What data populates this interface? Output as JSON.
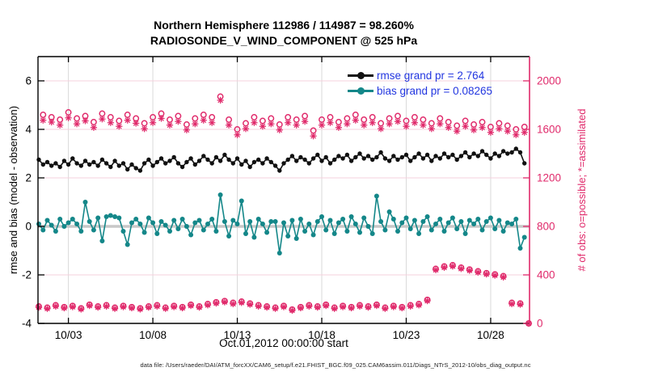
{
  "title": {
    "line1": "Northern Hemisphere 112986 / 114987 = 98.260%",
    "line2": "RADIOSONDE_V_WIND_COMPONENT @ 525 hPa"
  },
  "footer": {
    "data_file_label": "data file: /Users/raeder/DAI/ATM_forcXX/CAM6_setup/f.e21.FHIST_BGC.f09_025.CAM6assim.011/Diags_NTrS_2012-10/obs_diag_output.nc"
  },
  "legend": {
    "text_color": "#2236e0",
    "items": [
      {
        "name": "rmse",
        "label": "rmse grand pr = 2.764",
        "color": "#111111"
      },
      {
        "name": "bias",
        "label": "bias grand pr = 0.08265",
        "color": "#148789"
      }
    ]
  },
  "colors": {
    "rmse_line": "#111111",
    "bias_line": "#148789",
    "obs_pink": "#e02a6b",
    "grid_gray": "#d9d9d9",
    "grid_pink": "#f6d0dd",
    "zero_band": "#c8c8c8",
    "axis_black": "#000000"
  },
  "chart_data": {
    "type": "line",
    "title": "Northern Hemisphere 112986 / 114987 = 98.260%",
    "subtitle": "RADIOSONDE_V_WIND_COMPONENT @ 525 hPa",
    "xlabel": "Oct.01,2012 00:00:00 start",
    "ylabel_left": "rmse and bias (model - observation)",
    "ylabel_right": "# of obs: o=possible; *=assimilated",
    "x_unit": "day of October 2012, 6-hourly bins",
    "x_start_day": 1.25,
    "x_step_day": 0.25,
    "xlim": [
      1.2,
      30.3
    ],
    "ylim_left": [
      -4,
      7
    ],
    "ylim_right": [
      0,
      2200
    ],
    "x_ticks": [
      3,
      8,
      13,
      18,
      23,
      28
    ],
    "x_tick_labels": [
      "10/03",
      "10/08",
      "10/13",
      "10/18",
      "10/23",
      "10/28"
    ],
    "y_ticks_left": [
      -4,
      -2,
      0,
      2,
      4,
      6
    ],
    "y_ticks_right": [
      0,
      400,
      800,
      1200,
      1600,
      2000
    ],
    "grand_pr": {
      "rmse": 2.764,
      "bias": 0.08265
    },
    "series": [
      {
        "name": "rmse",
        "axis": "left",
        "color": "#111111",
        "marker": "dot",
        "line": true,
        "values": [
          2.75,
          2.55,
          2.65,
          2.5,
          2.6,
          2.45,
          2.7,
          2.55,
          2.8,
          2.6,
          2.5,
          2.7,
          2.55,
          2.65,
          2.5,
          2.75,
          2.6,
          2.45,
          2.7,
          2.5,
          2.6,
          2.35,
          2.55,
          2.4,
          2.3,
          2.6,
          2.75,
          2.5,
          2.65,
          2.8,
          2.6,
          2.7,
          2.85,
          2.6,
          2.45,
          2.65,
          2.8,
          2.55,
          2.7,
          2.9,
          2.75,
          2.6,
          2.85,
          2.7,
          2.95,
          2.75,
          2.6,
          2.8,
          2.55,
          2.7,
          2.45,
          2.65,
          2.75,
          2.6,
          2.8,
          2.65,
          2.5,
          2.3,
          2.6,
          2.75,
          2.9,
          2.7,
          2.85,
          2.75,
          2.6,
          2.8,
          2.95,
          2.7,
          2.85,
          2.6,
          2.75,
          2.9,
          2.8,
          2.95,
          2.7,
          2.85,
          3.0,
          2.8,
          2.9,
          2.75,
          2.85,
          3.05,
          2.8,
          2.7,
          2.9,
          2.75,
          2.85,
          2.95,
          2.7,
          2.85,
          3.0,
          2.8,
          2.95,
          2.7,
          2.9,
          2.8,
          3.0,
          2.85,
          2.95,
          2.75,
          2.9,
          3.05,
          2.85,
          3.0,
          2.9,
          3.1,
          2.95,
          2.8,
          3.0,
          2.9,
          3.1,
          3.0,
          3.05,
          3.2,
          3.05,
          2.6,
          null
        ]
      },
      {
        "name": "bias",
        "axis": "left",
        "color": "#148789",
        "marker": "dot",
        "line": true,
        "values": [
          0.1,
          -0.15,
          0.25,
          0.05,
          -0.2,
          0.3,
          0.0,
          0.15,
          0.3,
          0.1,
          -0.2,
          1.0,
          0.2,
          -0.15,
          0.35,
          -0.6,
          0.4,
          0.45,
          0.4,
          0.35,
          -0.2,
          -0.75,
          0.15,
          0.3,
          0.1,
          -0.25,
          0.35,
          0.15,
          -0.3,
          0.2,
          0.05,
          -0.2,
          0.25,
          -0.1,
          0.3,
          0.0,
          -0.35,
          0.15,
          0.25,
          -0.15,
          0.1,
          0.3,
          -0.2,
          1.3,
          0.2,
          -0.4,
          0.25,
          0.1,
          1.05,
          -0.3,
          0.2,
          -0.45,
          0.3,
          0.1,
          -0.25,
          0.2,
          0.2,
          -1.1,
          0.15,
          -0.4,
          0.25,
          -0.5,
          0.3,
          -0.2,
          0.1,
          -0.35,
          0.2,
          0.4,
          -0.15,
          0.25,
          -0.3,
          0.15,
          0.3,
          -0.2,
          0.4,
          0.1,
          -0.25,
          0.35,
          0.0,
          -0.3,
          1.25,
          0.2,
          -0.15,
          0.6,
          0.3,
          -0.2,
          0.15,
          0.35,
          -0.1,
          0.25,
          -0.3,
          0.2,
          0.4,
          -0.15,
          0.1,
          0.3,
          -0.2,
          0.15,
          0.35,
          -0.1,
          0.2,
          -0.3,
          0.25,
          0.1,
          0.3,
          -0.15,
          0.2,
          0.35,
          -0.1,
          0.25,
          -0.2,
          0.15,
          0.1,
          0.3,
          -0.9,
          -0.45,
          null
        ]
      },
      {
        "name": "obs_possible",
        "axis": "right",
        "color": "#e02a6b",
        "marker": "o",
        "line": false,
        "values": [
          140,
          1720,
          130,
          1700,
          150,
          1680,
          135,
          1740,
          145,
          1690,
          125,
          1710,
          155,
          1660,
          140,
          1730,
          150,
          1700,
          130,
          1670,
          145,
          1720,
          135,
          1690,
          125,
          1650,
          140,
          1700,
          150,
          1730,
          130,
          1680,
          145,
          1710,
          135,
          1640,
          155,
          1690,
          140,
          1720,
          160,
          1700,
          175,
          1870,
          185,
          1680,
          170,
          1600,
          180,
          1650,
          165,
          1700,
          150,
          1670,
          140,
          1690,
          130,
          1640,
          145,
          1700,
          115,
          1680,
          135,
          1710,
          150,
          1590,
          140,
          1680,
          155,
          1700,
          130,
          1660,
          145,
          1690,
          135,
          1720,
          150,
          1680,
          140,
          1700,
          155,
          1650,
          130,
          1690,
          145,
          1710,
          135,
          1670,
          150,
          1700,
          160,
          1680,
          195,
          1650,
          450,
          1690,
          470,
          1660,
          480,
          1630,
          460,
          1670,
          445,
          1640,
          430,
          1660,
          415,
          1620,
          405,
          1650,
          390,
          1630,
          170,
          1600,
          165,
          1620,
          0
        ]
      },
      {
        "name": "obs_assimilated",
        "axis": "right",
        "color": "#e02a6b",
        "marker": "asterisk",
        "line": false,
        "values": [
          132,
          1675,
          122,
          1660,
          141,
          1635,
          127,
          1695,
          136,
          1645,
          117,
          1670,
          146,
          1615,
          132,
          1685,
          141,
          1655,
          122,
          1625,
          136,
          1675,
          127,
          1650,
          117,
          1605,
          132,
          1655,
          141,
          1690,
          122,
          1635,
          136,
          1665,
          127,
          1595,
          146,
          1645,
          132,
          1675,
          151,
          1655,
          166,
          1840,
          176,
          1635,
          161,
          1555,
          171,
          1605,
          156,
          1655,
          141,
          1625,
          132,
          1645,
          122,
          1595,
          136,
          1655,
          107,
          1635,
          127,
          1665,
          141,
          1545,
          132,
          1635,
          146,
          1655,
          122,
          1615,
          136,
          1645,
          127,
          1675,
          141,
          1635,
          132,
          1655,
          146,
          1605,
          122,
          1645,
          136,
          1665,
          127,
          1625,
          141,
          1655,
          151,
          1635,
          186,
          1605,
          441,
          1645,
          461,
          1615,
          471,
          1585,
          451,
          1625,
          436,
          1595,
          421,
          1615,
          406,
          1575,
          396,
          1605,
          381,
          1585,
          161,
          1555,
          156,
          1575,
          0
        ]
      }
    ]
  }
}
